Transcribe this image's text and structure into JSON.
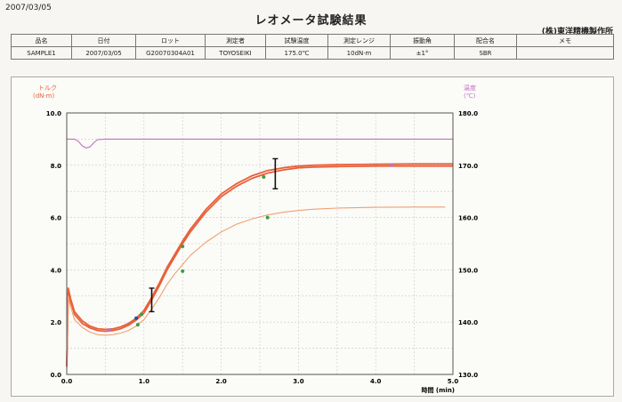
{
  "header": {
    "date": "2007/03/05",
    "title": "レオメータ試験結果",
    "company": "(株)東洋精機製作所"
  },
  "info_table": {
    "headers": [
      "品名",
      "日付",
      "ロット",
      "測定者",
      "試験温度",
      "測定レンジ",
      "振動角",
      "配合名",
      "メモ"
    ],
    "values": [
      "SAMPLE1",
      "2007/03/05",
      "G20070304A01",
      "TOYOSEIKI",
      "175.0℃",
      "10dN·m",
      "±1°",
      "SBR",
      ""
    ]
  },
  "chart_data": {
    "type": "line",
    "left_axis": {
      "label_line1": "トルク",
      "label_line2": "(dN·m)",
      "range": [
        0,
        10
      ],
      "ticks": [
        "0.0",
        "2.0",
        "4.0",
        "6.0",
        "8.0",
        "10.0"
      ]
    },
    "right_axis": {
      "label_line1": "温度",
      "label_line2": "(℃)",
      "range": [
        130,
        180
      ],
      "ticks": [
        "130.0",
        "140.0",
        "150.0",
        "160.0",
        "170.0",
        "180.0"
      ]
    },
    "x_axis": {
      "label": "時間 (min)",
      "range": [
        0,
        5
      ],
      "ticks": [
        "0.0",
        "1.0",
        "2.0",
        "3.0",
        "4.0",
        "5.0"
      ]
    },
    "grid": true,
    "colors": {
      "torque": "#e8603a",
      "torque_lower": "#f0a070",
      "temperature": "#c070c0",
      "error_bar": "#111111",
      "marker_green": "#3aa040",
      "marker_blue": "#2050a0"
    },
    "series": [
      {
        "axis": "left",
        "role": "torque",
        "x": [
          0.0,
          0.02,
          0.05,
          0.1,
          0.2,
          0.3,
          0.4,
          0.5,
          0.6,
          0.7,
          0.8,
          0.9,
          1.0,
          1.1,
          1.2,
          1.3,
          1.4,
          1.5,
          1.6,
          1.8,
          2.0,
          2.2,
          2.4,
          2.6,
          2.8,
          3.0,
          3.2,
          3.5,
          3.8,
          4.0,
          4.5,
          5.0
        ],
        "y": [
          0.3,
          3.3,
          2.9,
          2.4,
          2.05,
          1.85,
          1.75,
          1.72,
          1.74,
          1.82,
          1.95,
          2.15,
          2.45,
          2.95,
          3.5,
          4.1,
          4.6,
          5.1,
          5.55,
          6.3,
          6.9,
          7.3,
          7.6,
          7.8,
          7.9,
          7.97,
          8.0,
          8.02,
          8.03,
          8.04,
          8.05,
          8.05
        ]
      },
      {
        "axis": "left",
        "role": "torque",
        "x": [
          0.0,
          0.02,
          0.05,
          0.1,
          0.2,
          0.3,
          0.4,
          0.5,
          0.6,
          0.7,
          0.8,
          0.9,
          1.0,
          1.1,
          1.2,
          1.3,
          1.4,
          1.5,
          1.6,
          1.8,
          2.0,
          2.2,
          2.4,
          2.6,
          2.8,
          3.0,
          3.2,
          3.5,
          3.8,
          4.0,
          4.5,
          5.0
        ],
        "y": [
          0.3,
          3.2,
          2.8,
          2.3,
          1.95,
          1.78,
          1.68,
          1.65,
          1.68,
          1.75,
          1.88,
          2.08,
          2.35,
          2.85,
          3.4,
          4.0,
          4.5,
          5.0,
          5.45,
          6.2,
          6.8,
          7.2,
          7.5,
          7.7,
          7.82,
          7.9,
          7.93,
          7.95,
          7.96,
          7.97,
          7.97,
          7.97
        ]
      },
      {
        "axis": "left",
        "role": "torque_lower",
        "x": [
          0.0,
          0.02,
          0.05,
          0.1,
          0.2,
          0.3,
          0.4,
          0.5,
          0.6,
          0.7,
          0.8,
          0.9,
          1.0,
          1.1,
          1.2,
          1.3,
          1.4,
          1.5,
          1.6,
          1.8,
          2.0,
          2.2,
          2.4,
          2.6,
          2.8,
          3.0,
          3.2,
          3.5,
          3.8,
          4.0,
          4.5,
          4.9
        ],
        "y": [
          0.3,
          3.0,
          2.6,
          2.1,
          1.8,
          1.62,
          1.52,
          1.5,
          1.52,
          1.58,
          1.68,
          1.85,
          2.1,
          2.5,
          2.95,
          3.45,
          3.85,
          4.2,
          4.55,
          5.05,
          5.45,
          5.75,
          5.95,
          6.1,
          6.2,
          6.27,
          6.32,
          6.36,
          6.38,
          6.39,
          6.4,
          6.4
        ]
      },
      {
        "axis": "right",
        "role": "temperature",
        "x": [
          0.0,
          0.1,
          0.15,
          0.2,
          0.25,
          0.3,
          0.35,
          0.4,
          0.5,
          1.0,
          2.0,
          3.0,
          4.0,
          5.0
        ],
        "y": [
          175.0,
          175.0,
          174.6,
          173.7,
          173.3,
          173.5,
          174.3,
          174.9,
          175.0,
          175.0,
          175.0,
          175.0,
          175.0,
          175.0
        ]
      }
    ],
    "error_bars": [
      {
        "x": 1.1,
        "low": 2.4,
        "high": 3.3
      },
      {
        "x": 2.7,
        "low": 7.1,
        "high": 8.25
      }
    ],
    "markers": [
      {
        "x": 0.9,
        "y": 2.15,
        "color": "blue"
      },
      {
        "x": 0.92,
        "y": 1.9,
        "color": "green"
      },
      {
        "x": 0.97,
        "y": 2.3,
        "color": "green"
      },
      {
        "x": 1.5,
        "y": 4.9,
        "color": "green"
      },
      {
        "x": 1.5,
        "y": 3.95,
        "color": "green"
      },
      {
        "x": 2.55,
        "y": 7.55,
        "color": "green"
      },
      {
        "x": 2.6,
        "y": 6.0,
        "color": "green"
      },
      {
        "x": 0.55,
        "y": 1.7,
        "color": "purple"
      },
      {
        "x": 4.2,
        "y": 8.0,
        "color": "purple"
      }
    ]
  }
}
